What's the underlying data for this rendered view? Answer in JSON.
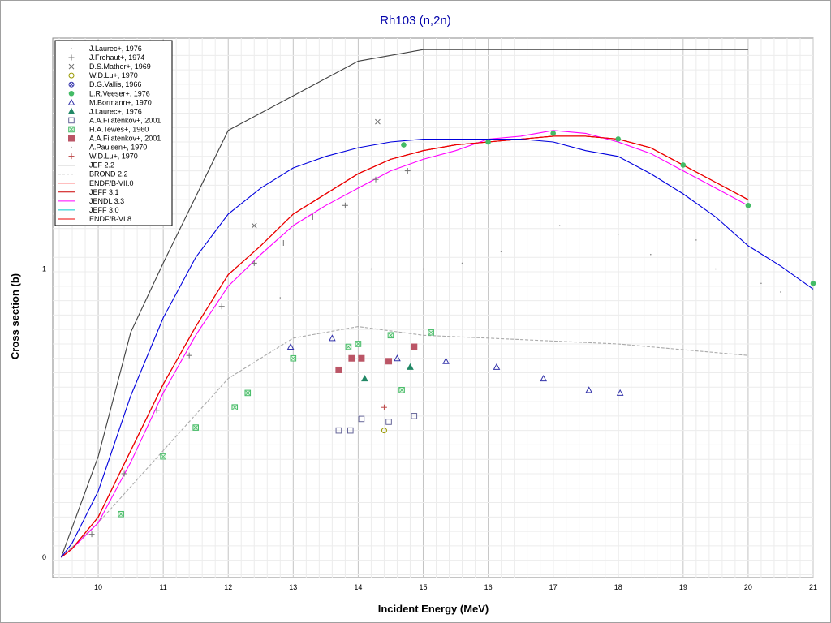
{
  "chart_data": {
    "type": "line",
    "title": "Rh103 (n,2n)",
    "xlabel": "Incident Energy (MeV)",
    "ylabel": "Cross section (b)",
    "xlim": [
      9.3,
      21
    ],
    "ylim": [
      -0.07,
      1.8
    ],
    "x_ticks": [
      10,
      11,
      12,
      13,
      14,
      15,
      16,
      17,
      18,
      19,
      20,
      21
    ],
    "y_ticks": [
      0,
      1
    ],
    "grid": true,
    "legend_position": "top-left",
    "series": [
      {
        "name": "JEF 2.2",
        "kind": "line",
        "color": "#404040",
        "x": [
          9.43,
          10.0,
          10.5,
          11.0,
          12.0,
          13.0,
          14.0,
          15.0,
          16.0,
          17.0,
          18.0,
          19.0,
          20.0
        ],
        "y": [
          0.0,
          0.35,
          0.78,
          1.02,
          1.48,
          1.6,
          1.72,
          1.76,
          1.76,
          1.76,
          1.76,
          1.76,
          1.76
        ]
      },
      {
        "name": "BROND 2.2",
        "kind": "line",
        "color": "#aaaaaa",
        "x": [
          9.43,
          10.0,
          11.0,
          12.0,
          13.0,
          14.0,
          15.0,
          16.0,
          17.0,
          18.0,
          19.0,
          20.0
        ],
        "y": [
          0.0,
          0.12,
          0.37,
          0.62,
          0.76,
          0.8,
          0.77,
          0.76,
          0.75,
          0.74,
          0.72,
          0.7
        ],
        "dash": true
      },
      {
        "name": "ENDF/B-VII.0",
        "kind": "line",
        "color": "#ff0000",
        "x": [
          9.43,
          9.6,
          10.0,
          10.5,
          11.0,
          11.5,
          12.0,
          12.5,
          13.0,
          13.5,
          14.0,
          14.5,
          15.0,
          15.5,
          16.0,
          16.5,
          17.0,
          17.5,
          18.0,
          18.5,
          19.0,
          19.5,
          20.0
        ],
        "y": [
          0.0,
          0.03,
          0.14,
          0.37,
          0.6,
          0.8,
          0.98,
          1.08,
          1.19,
          1.26,
          1.33,
          1.38,
          1.41,
          1.43,
          1.44,
          1.45,
          1.46,
          1.46,
          1.45,
          1.42,
          1.36,
          1.3,
          1.24
        ]
      },
      {
        "name": "JEFF 3.1",
        "kind": "line",
        "color": "#cc0000",
        "x": [
          9.43,
          9.6,
          10.0,
          10.5,
          11.0,
          11.5,
          12.0,
          12.5,
          13.0,
          13.5,
          14.0,
          14.5,
          15.0,
          15.5,
          16.0,
          16.5,
          17.0,
          17.5,
          18.0,
          18.5,
          19.0,
          19.5,
          20.0
        ],
        "y": [
          0.0,
          0.03,
          0.14,
          0.37,
          0.6,
          0.8,
          0.98,
          1.08,
          1.19,
          1.26,
          1.33,
          1.38,
          1.41,
          1.43,
          1.44,
          1.45,
          1.46,
          1.46,
          1.45,
          1.42,
          1.36,
          1.3,
          1.24
        ]
      },
      {
        "name": "JENDL 3.3",
        "kind": "line",
        "color": "#ff00ff",
        "x": [
          9.43,
          9.6,
          10.0,
          10.5,
          11.0,
          11.5,
          12.0,
          12.5,
          13.0,
          13.5,
          14.0,
          14.5,
          15.0,
          15.5,
          16.0,
          16.5,
          17.0,
          17.5,
          18.0,
          18.5,
          19.0,
          19.5,
          20.0
        ],
        "y": [
          0.0,
          0.03,
          0.12,
          0.33,
          0.57,
          0.77,
          0.94,
          1.05,
          1.15,
          1.22,
          1.28,
          1.34,
          1.38,
          1.41,
          1.45,
          1.46,
          1.48,
          1.47,
          1.44,
          1.4,
          1.34,
          1.28,
          1.22
        ]
      },
      {
        "name": "JEFF 3.0",
        "kind": "line",
        "color": "#00cccc",
        "x": [],
        "y": []
      },
      {
        "name": "ENDF/B-VI.8",
        "kind": "line",
        "color": "#ee0000",
        "x": [
          9.43,
          9.6,
          10.0,
          10.5,
          11.0,
          11.5,
          12.0,
          12.5,
          13.0,
          13.5,
          14.0,
          14.5,
          15.0,
          15.5,
          16.0,
          16.5,
          17.0,
          17.5,
          18.0,
          18.5,
          19.0,
          19.5,
          20.0
        ],
        "y": [
          0.0,
          0.03,
          0.14,
          0.37,
          0.6,
          0.8,
          0.98,
          1.08,
          1.19,
          1.26,
          1.33,
          1.38,
          1.41,
          1.43,
          1.44,
          1.45,
          1.46,
          1.46,
          1.45,
          1.42,
          1.36,
          1.3,
          1.24
        ]
      },
      {
        "name": "",
        "kind": "line",
        "color": "#0000dd",
        "x": [
          9.43,
          9.6,
          10.0,
          10.5,
          11.0,
          11.5,
          12.0,
          12.5,
          13.0,
          13.5,
          14.0,
          14.5,
          15.0,
          15.5,
          16.0,
          16.5,
          17.0,
          17.5,
          18.0,
          18.5,
          19.0,
          19.5,
          20.0,
          20.5,
          21.0
        ],
        "y": [
          0.0,
          0.05,
          0.23,
          0.56,
          0.83,
          1.04,
          1.19,
          1.28,
          1.35,
          1.39,
          1.42,
          1.44,
          1.45,
          1.45,
          1.45,
          1.45,
          1.44,
          1.41,
          1.39,
          1.33,
          1.26,
          1.18,
          1.08,
          1.01,
          0.93
        ]
      },
      {
        "name": "J.Laurec+, 1976",
        "kind": "scatter",
        "marker": "dot",
        "color": "#888888",
        "x": [
          12.8,
          14.2,
          15.0,
          15.6,
          16.2,
          17.1,
          18.0,
          18.5,
          19.2,
          19.5,
          20.2,
          20.5
        ],
        "y": [
          0.9,
          1.0,
          1.0,
          1.02,
          1.06,
          1.15,
          1.12,
          1.05,
          1.1,
          1.0,
          0.95,
          0.92
        ]
      },
      {
        "name": "J.Frehaut+, 1974",
        "kind": "scatter",
        "marker": "plus",
        "color": "#707070",
        "x": [
          9.9,
          10.4,
          10.9,
          11.4,
          11.9,
          12.4,
          12.85,
          13.3,
          13.8,
          14.27,
          14.76
        ],
        "y": [
          0.08,
          0.29,
          0.51,
          0.7,
          0.87,
          1.02,
          1.09,
          1.18,
          1.22,
          1.31,
          1.34
        ]
      },
      {
        "name": "D.S.Mather+, 1969",
        "kind": "scatter",
        "marker": "x",
        "color": "#707070",
        "x": [
          12.4,
          14.3
        ],
        "y": [
          1.15,
          1.51
        ]
      },
      {
        "name": "W.D.Lu+, 1970",
        "kind": "scatter",
        "marker": "circle",
        "color": "#999900",
        "x": [
          14.4
        ],
        "y": [
          0.44
        ]
      },
      {
        "name": "D.G.Vallis, 1966",
        "kind": "scatter",
        "marker": "circlex",
        "color": "#3333aa",
        "x": [],
        "y": []
      },
      {
        "name": "L.R.Veeser+, 1976",
        "kind": "scatter",
        "marker": "filledcircle",
        "color": "#44bb66",
        "x": [
          14.7,
          16.0,
          17.0,
          18.0,
          19.0,
          20.0,
          21.0
        ],
        "y": [
          1.43,
          1.44,
          1.47,
          1.45,
          1.36,
          1.22,
          0.95
        ]
      },
      {
        "name": "M.Bormann+, 1970",
        "kind": "scatter",
        "marker": "triangle",
        "color": "#3333aa",
        "x": [
          12.96,
          13.6,
          14.6,
          15.35,
          16.13,
          16.85,
          17.55,
          18.03
        ],
        "y": [
          0.73,
          0.76,
          0.69,
          0.68,
          0.66,
          0.62,
          0.58,
          0.57
        ]
      },
      {
        "name": "J.Laurec+, 1976",
        "kind": "scatter",
        "marker": "filledtriangle",
        "color": "#228866",
        "x": [
          14.1,
          14.8
        ],
        "y": [
          0.62,
          0.66
        ]
      },
      {
        "name": "A.A.Filatenkov+, 2001",
        "kind": "scatter",
        "marker": "square",
        "color": "#666699",
        "x": [
          13.7,
          13.88,
          14.05,
          14.47,
          14.86
        ],
        "y": [
          0.44,
          0.44,
          0.48,
          0.47,
          0.49
        ]
      },
      {
        "name": "H.A.Tewes+, 1960",
        "kind": "scatter",
        "marker": "squarex",
        "color": "#44bb66",
        "x": [
          10.35,
          11.0,
          11.5,
          12.1,
          12.3,
          13.0,
          13.85,
          14.0,
          14.5,
          14.67,
          15.12
        ],
        "y": [
          0.15,
          0.35,
          0.45,
          0.52,
          0.57,
          0.69,
          0.73,
          0.74,
          0.77,
          0.58,
          0.78
        ]
      },
      {
        "name": "A.A.Filatenkov+, 2001",
        "kind": "scatter",
        "marker": "filledsquare",
        "color": "#bb5566",
        "x": [
          13.7,
          13.9,
          14.05,
          14.47,
          14.86
        ],
        "y": [
          0.65,
          0.69,
          0.69,
          0.68,
          0.73
        ]
      },
      {
        "name": "A.Paulsen+, 1970",
        "kind": "scatter",
        "marker": "dot",
        "color": "#999999",
        "x": [],
        "y": []
      },
      {
        "name": "W.D.Lu+, 1970",
        "kind": "scatter",
        "marker": "plus",
        "color": "#bb4444",
        "x": [
          14.4
        ],
        "y": [
          0.52
        ]
      }
    ]
  }
}
